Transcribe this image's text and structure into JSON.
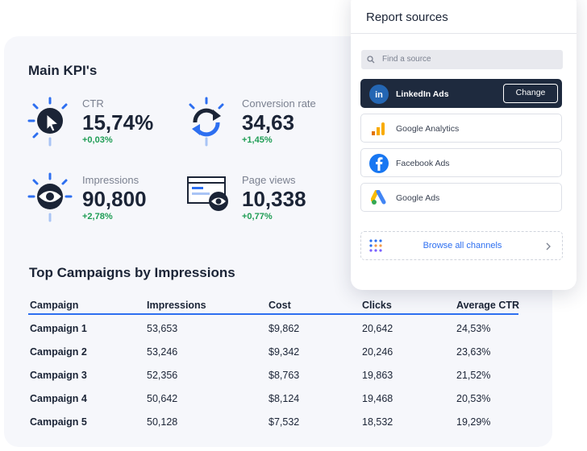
{
  "kpi": {
    "title": "Main KPI's",
    "items": [
      {
        "label": "CTR",
        "value": "15,74%",
        "change": "+0,03%"
      },
      {
        "label": "Conversion rate",
        "value": "34,63",
        "change": "+1,45%"
      },
      {
        "label": "Impressions",
        "value": "90,800",
        "change": "+2,78%"
      },
      {
        "label": "Page views",
        "value": "10,338",
        "change": "+0,77%"
      }
    ]
  },
  "campaigns": {
    "title": "Top Campaigns by Impressions",
    "columns": [
      "Campaign",
      "Impressions",
      "Cost",
      "Clicks",
      "Average CTR"
    ],
    "rows": [
      [
        "Campaign 1",
        "53,653",
        "$9,862",
        "20,642",
        "24,53%"
      ],
      [
        "Campaign 2",
        "53,246",
        "$9,342",
        "20,246",
        "23,63%"
      ],
      [
        "Campaign 3",
        "52,356",
        "$8,763",
        "19,863",
        "21,52%"
      ],
      [
        "Campaign 4",
        "50,642",
        "$8,124",
        "19,468",
        "20,53%"
      ],
      [
        "Campaign 5",
        "50,128",
        "$7,532",
        "18,532",
        "19,29%"
      ]
    ]
  },
  "sources": {
    "title": "Report sources",
    "search_placeholder": "Find a source",
    "items": [
      "LinkedIn Ads",
      "Google Analytics",
      "Facebook Ads",
      "Google Ads"
    ],
    "selected_action": "Change",
    "browse": "Browse all channels"
  }
}
